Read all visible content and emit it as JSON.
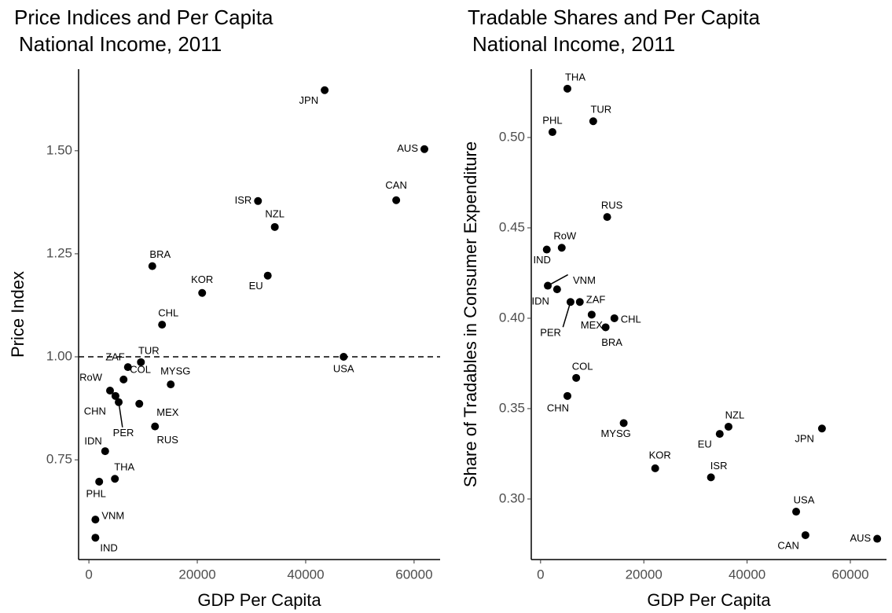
{
  "chart_data": [
    {
      "type": "scatter",
      "title": [
        "Price Indices and Per Capita",
        "National Income, 2011"
      ],
      "x_label": "GDP Per Capita",
      "y_label": "Price Index",
      "labels": [
        "AUS",
        "JPN",
        "CAN",
        "USA",
        "ISR",
        "NZL",
        "EU",
        "KOR",
        "BRA",
        "CHL",
        "TUR",
        "ZAF",
        "MYSG",
        "RoW",
        "CHN",
        "COL",
        "PER",
        "MEX",
        "RUS",
        "IDN",
        "PHL",
        "THA",
        "VNM",
        "IND"
      ],
      "x": [
        61900,
        43500,
        56700,
        47000,
        31200,
        34300,
        33000,
        20900,
        11700,
        13500,
        9600,
        7200,
        15100,
        3900,
        4900,
        6400,
        5500,
        9300,
        12200,
        3000,
        1900,
        4800,
        1200,
        1200
      ],
      "y": [
        1.504,
        1.647,
        1.38,
        1.0,
        1.378,
        1.315,
        1.197,
        1.155,
        1.22,
        1.078,
        0.987,
        0.975,
        0.933,
        0.918,
        0.905,
        0.945,
        0.89,
        0.886,
        0.831,
        0.771,
        0.697,
        0.704,
        0.605,
        0.561
      ],
      "color": "#000000",
      "xlim": [
        -1900,
        64800
      ],
      "xticks": [
        0,
        20000,
        40000,
        60000
      ],
      "ylim": [
        0.508,
        1.698
      ],
      "yticks": [
        0.75,
        {
          "value": 1.0,
          "label": "1.00"
        },
        1.25,
        {
          "value": 1.5,
          "label": "1.50"
        }
      ],
      "hline": 1.0
    },
    {
      "type": "scatter",
      "title": [
        "Tradable Shares and Per Capita",
        "National Income, 2011"
      ],
      "x_label": "GDP Per Capita",
      "y_label": "Share of Tradables in Consumer Expenditure",
      "labels": [
        "AUS",
        "JPN",
        "CAN",
        "USA",
        "ISR",
        "NZL",
        "EU",
        "KOR",
        "BRA",
        "CHL",
        "TUR",
        "ZAF",
        "MYSG",
        "RoW",
        "CHN",
        "COL",
        "PER",
        "MEX",
        "RUS",
        "IDN",
        "PHL",
        "THA",
        "VNM",
        "IND"
      ],
      "x": [
        65200,
        54500,
        51300,
        49500,
        33000,
        36400,
        34700,
        22200,
        12600,
        14300,
        10200,
        7600,
        16100,
        4100,
        5200,
        6900,
        5800,
        9900,
        12900,
        3200,
        2300,
        5200,
        1400,
        1200
      ],
      "y": [
        0.278,
        0.339,
        0.28,
        0.293,
        0.312,
        0.34,
        0.336,
        0.317,
        0.395,
        0.4,
        0.509,
        0.409,
        0.342,
        0.439,
        0.357,
        0.367,
        0.409,
        0.402,
        0.456,
        0.416,
        0.503,
        0.527,
        0.418,
        0.438
      ],
      "color": "#000000",
      "xlim": [
        -1800,
        67000
      ],
      "xticks": [
        0,
        20000,
        40000,
        60000
      ],
      "ylim": [
        0.2665,
        0.5378
      ],
      "yticks": [
        {
          "value": 0.3,
          "label": "0.30"
        },
        0.35,
        {
          "value": 0.4,
          "label": "0.40"
        },
        0.45,
        {
          "value": 0.5,
          "label": "0.50"
        }
      ]
    }
  ]
}
